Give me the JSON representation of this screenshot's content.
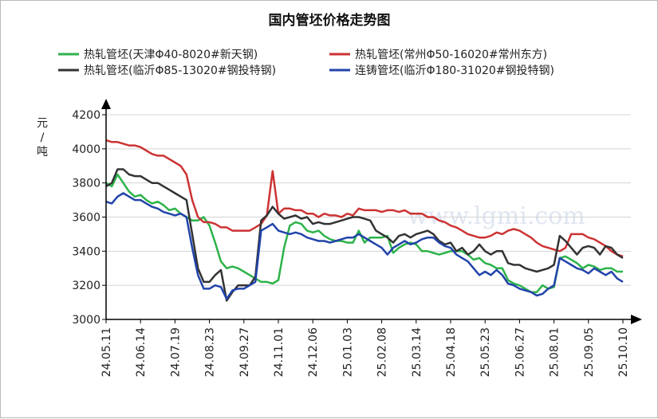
{
  "chart_data": {
    "type": "line",
    "title": "国内管坯价格走势图",
    "ylabel": "元/吨",
    "xlabel": "",
    "ylim": [
      3000,
      4200
    ],
    "yticks": [
      3000,
      3200,
      3400,
      3600,
      3800,
      4000,
      4200
    ],
    "xticks": [
      "24.05.11",
      "24.06.14",
      "24.07.19",
      "24.08.23",
      "24.09.27",
      "24.11.01",
      "24.12.06",
      "25.01.03",
      "25.02.08",
      "25.03.14",
      "25.04.18",
      "25.05.23",
      "25.06.27",
      "25.08.01",
      "25.09.05",
      "25.10.10"
    ],
    "grid": true,
    "legend_position": "top",
    "watermark": "www.lgmi.com",
    "series": [
      {
        "name": "热轧管坯(天津Φ40-8020#新天钢)",
        "color": "#2db34a",
        "values": [
          3800,
          3780,
          3850,
          3800,
          3750,
          3720,
          3730,
          3700,
          3680,
          3690,
          3670,
          3640,
          3650,
          3620,
          3600,
          3580,
          3580,
          3600,
          3550,
          3450,
          3340,
          3300,
          3310,
          3300,
          3280,
          3260,
          3240,
          3220,
          3220,
          3210,
          3230,
          3420,
          3550,
          3570,
          3560,
          3520,
          3510,
          3520,
          3490,
          3470,
          3460,
          3460,
          3450,
          3450,
          3520,
          3450,
          3480,
          3480,
          3480,
          3490,
          3390,
          3420,
          3440,
          3450,
          3440,
          3400,
          3400,
          3390,
          3380,
          3390,
          3400,
          3400,
          3400,
          3380,
          3350,
          3360,
          3330,
          3320,
          3300,
          3300,
          3230,
          3210,
          3200,
          3180,
          3160,
          3160,
          3200,
          3180,
          3190,
          3360,
          3370,
          3350,
          3330,
          3300,
          3320,
          3310,
          3290,
          3300,
          3300,
          3280,
          3280
        ]
      },
      {
        "name": "热轧管坯(常州Φ50-16020#常州东方)",
        "color": "#cc3333",
        "values": [
          4050,
          4040,
          4040,
          4030,
          4020,
          4020,
          4010,
          3990,
          3970,
          3960,
          3960,
          3940,
          3920,
          3900,
          3850,
          3700,
          3600,
          3570,
          3570,
          3560,
          3540,
          3540,
          3520,
          3520,
          3520,
          3520,
          3540,
          3560,
          3610,
          3870,
          3620,
          3650,
          3650,
          3640,
          3640,
          3620,
          3620,
          3600,
          3620,
          3610,
          3610,
          3600,
          3620,
          3610,
          3650,
          3640,
          3640,
          3640,
          3630,
          3640,
          3640,
          3630,
          3640,
          3620,
          3620,
          3620,
          3600,
          3600,
          3580,
          3570,
          3550,
          3540,
          3520,
          3500,
          3490,
          3480,
          3480,
          3490,
          3510,
          3500,
          3520,
          3530,
          3520,
          3500,
          3480,
          3450,
          3430,
          3420,
          3410,
          3400,
          3420,
          3500,
          3500,
          3500,
          3480,
          3470,
          3450,
          3430,
          3400,
          3380,
          3370
        ]
      },
      {
        "name": "热轧管坯(临沂Φ85-13020#钢投特钢)",
        "color": "#333333",
        "values": [
          3780,
          3800,
          3880,
          3880,
          3850,
          3840,
          3840,
          3820,
          3800,
          3800,
          3780,
          3760,
          3740,
          3720,
          3700,
          3500,
          3300,
          3220,
          3220,
          3260,
          3290,
          3110,
          3160,
          3200,
          3200,
          3200,
          3250,
          3580,
          3610,
          3660,
          3620,
          3590,
          3600,
          3610,
          3590,
          3600,
          3560,
          3570,
          3560,
          3560,
          3570,
          3580,
          3590,
          3600,
          3600,
          3590,
          3580,
          3520,
          3500,
          3480,
          3450,
          3490,
          3500,
          3480,
          3500,
          3510,
          3520,
          3500,
          3460,
          3440,
          3450,
          3400,
          3420,
          3380,
          3400,
          3440,
          3400,
          3380,
          3400,
          3400,
          3330,
          3320,
          3320,
          3300,
          3290,
          3280,
          3290,
          3300,
          3320,
          3490,
          3460,
          3420,
          3380,
          3420,
          3430,
          3420,
          3380,
          3430,
          3420,
          3380,
          3360
        ]
      },
      {
        "name": "连铸管坯(临沂Φ180-31020#钢投特钢)",
        "color": "#2244aa",
        "values": [
          3690,
          3680,
          3720,
          3740,
          3720,
          3700,
          3700,
          3680,
          3660,
          3650,
          3630,
          3620,
          3610,
          3620,
          3600,
          3420,
          3260,
          3180,
          3180,
          3200,
          3190,
          3120,
          3170,
          3180,
          3180,
          3200,
          3220,
          3520,
          3540,
          3560,
          3520,
          3510,
          3500,
          3510,
          3500,
          3480,
          3470,
          3460,
          3460,
          3450,
          3460,
          3470,
          3480,
          3480,
          3500,
          3480,
          3460,
          3440,
          3420,
          3380,
          3420,
          3440,
          3460,
          3440,
          3450,
          3470,
          3480,
          3480,
          3450,
          3430,
          3420,
          3380,
          3360,
          3340,
          3300,
          3260,
          3280,
          3260,
          3290,
          3260,
          3210,
          3200,
          3180,
          3170,
          3160,
          3140,
          3150,
          3180,
          3200,
          3360,
          3340,
          3320,
          3300,
          3290,
          3270,
          3300,
          3280,
          3260,
          3280,
          3240,
          3220
        ]
      }
    ]
  }
}
